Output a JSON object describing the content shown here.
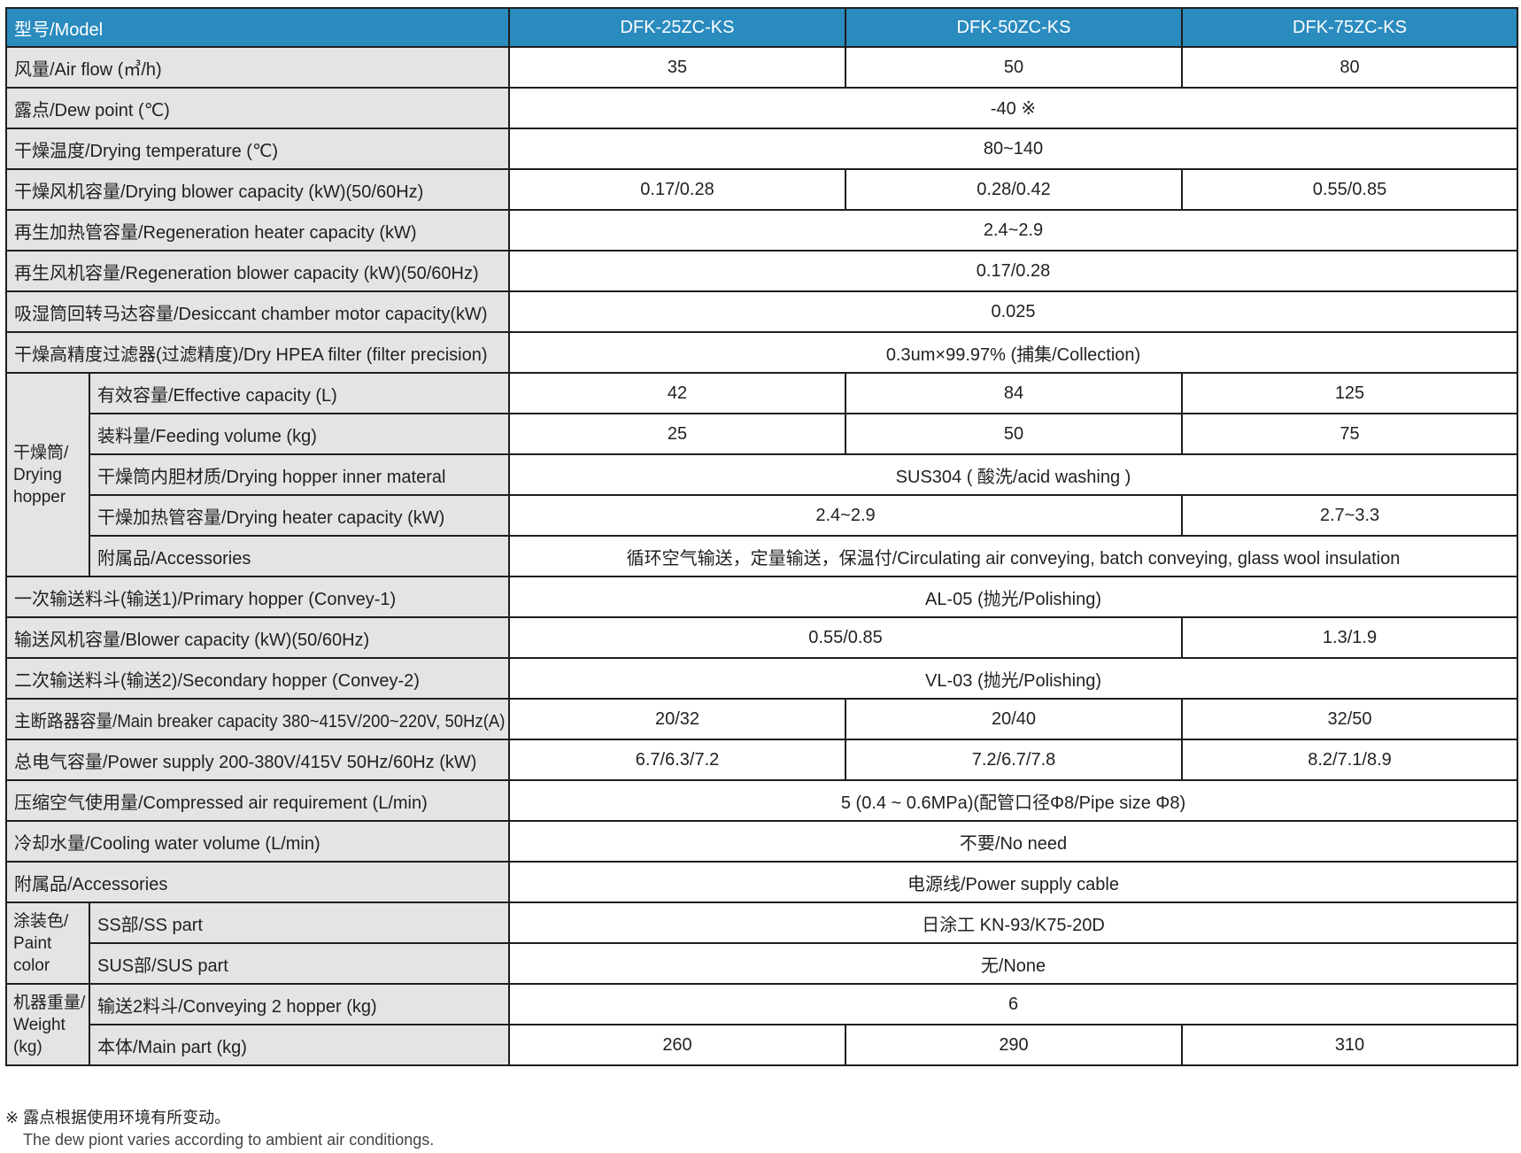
{
  "colors": {
    "header_bg": "#2a8bbf",
    "label_bg": "#e3e4e6",
    "border": "#1e1e1e"
  },
  "header": [
    "型号/Model",
    "DFK-25ZC-KS",
    "DFK-50ZC-KS",
    "DFK-75ZC-KS"
  ],
  "groups": {
    "hopper": "干燥筒/ Drying hopper",
    "paint": "涂装色/ Paint color",
    "weight": "机器重量/ Weight (kg)"
  },
  "rows": [
    {
      "label": "风量/Air flow (㎥/h)",
      "values": [
        [
          "35",
          1
        ],
        [
          "50",
          1
        ],
        [
          "80",
          1
        ]
      ]
    },
    {
      "label": "露点/Dew point (℃)",
      "values": [
        [
          "-40 ※",
          3
        ]
      ]
    },
    {
      "label": "干燥温度/Drying temperature (℃)",
      "values": [
        [
          "80~140",
          3
        ]
      ]
    },
    {
      "label": "干燥风机容量/Drying blower capacity (kW)(50/60Hz)",
      "values": [
        [
          "0.17/0.28",
          1
        ],
        [
          "0.28/0.42",
          1
        ],
        [
          "0.55/0.85",
          1
        ]
      ]
    },
    {
      "label": "再生加热管容量/Regeneration heater capacity (kW)",
      "values": [
        [
          "2.4~2.9",
          3
        ]
      ]
    },
    {
      "label": "再生风机容量/Regeneration blower capacity (kW)(50/60Hz)",
      "values": [
        [
          "0.17/0.28",
          3
        ]
      ]
    },
    {
      "label": "吸湿筒回转马达容量/Desiccant chamber motor capacity(kW)",
      "values": [
        [
          "0.025",
          3
        ]
      ]
    },
    {
      "label": "干燥高精度过滤器(过滤精度)/Dry HPEA filter (filter precision)",
      "values": [
        [
          "0.3um×99.97% (捕集/Collection)",
          3
        ]
      ]
    },
    {
      "group": "hopper",
      "label": "有效容量/Effective capacity (L)",
      "values": [
        [
          "42",
          1
        ],
        [
          "84",
          1
        ],
        [
          "125",
          1
        ]
      ]
    },
    {
      "group": "hopper",
      "label": "装料量/Feeding volume (kg)",
      "values": [
        [
          "25",
          1
        ],
        [
          "50",
          1
        ],
        [
          "75",
          1
        ]
      ]
    },
    {
      "group": "hopper",
      "label": "干燥筒内胆材质/Drying hopper inner materal",
      "values": [
        [
          "SUS304 ( 酸洗/acid washing )",
          3
        ]
      ]
    },
    {
      "group": "hopper",
      "label": "干燥加热管容量/Drying heater capacity (kW)",
      "values": [
        [
          "2.4~2.9",
          2
        ],
        [
          "2.7~3.3",
          1
        ]
      ]
    },
    {
      "group": "hopper",
      "label": "附属品/Accessories",
      "values": [
        [
          "循环空气输送，定量输送，保温付/Circulating air  conveying, batch conveying, glass wool insulation",
          3
        ]
      ]
    },
    {
      "label": "一次输送料斗(输送1)/Primary hopper (Convey-1)",
      "values": [
        [
          "AL-05 (抛光/Polishing)",
          3
        ]
      ]
    },
    {
      "label": "输送风机容量/Blower capacity (kW)(50/60Hz)",
      "values": [
        [
          "0.55/0.85",
          2
        ],
        [
          "1.3/1.9",
          1
        ]
      ]
    },
    {
      "label": "二次输送料斗(输送2)/Secondary hopper (Convey-2)",
      "values": [
        [
          "VL-03 (抛光/Polishing)",
          3
        ]
      ]
    },
    {
      "label": "主断路器容量/Main breaker capacity  380~415V/200~220V, 50Hz(A)",
      "values": [
        [
          "20/32",
          1
        ],
        [
          "20/40",
          1
        ],
        [
          "32/50",
          1
        ]
      ]
    },
    {
      "label": "总电气容量/Power supply 200-380V/415V 50Hz/60Hz (kW)",
      "values": [
        [
          "6.7/6.3/7.2",
          1
        ],
        [
          "7.2/6.7/7.8",
          1
        ],
        [
          "8.2/7.1/8.9",
          1
        ]
      ]
    },
    {
      "label": "压缩空气使用量/Compressed air requirement (L/min)",
      "values": [
        [
          "5 (0.4 ~ 0.6MPa)(配管口径Φ8/Pipe size Φ8)",
          3
        ]
      ]
    },
    {
      "label": "冷却水量/Cooling water volume (L/min)",
      "values": [
        [
          "不要/No need",
          3
        ]
      ]
    },
    {
      "label": "附属品/Accessories",
      "values": [
        [
          "电源线/Power supply cable",
          3
        ]
      ]
    },
    {
      "group": "paint",
      "label": "SS部/SS part",
      "values": [
        [
          "日涂工 KN-93/K75-20D",
          3
        ]
      ]
    },
    {
      "group": "paint",
      "label": "SUS部/SUS part",
      "values": [
        [
          "无/None",
          3
        ]
      ]
    },
    {
      "group": "weight",
      "label": "输送2料斗/Conveying 2 hopper (kg)",
      "values": [
        [
          "6",
          3
        ]
      ]
    },
    {
      "group": "weight",
      "label": "本体/Main part (kg)",
      "values": [
        [
          "260",
          1
        ],
        [
          "290",
          1
        ],
        [
          "310",
          1
        ]
      ]
    }
  ],
  "footnote": {
    "line1": "※ 露点根据使用环境有所变动。",
    "line2": "The dew piont varies according to ambient air conditiongs."
  }
}
